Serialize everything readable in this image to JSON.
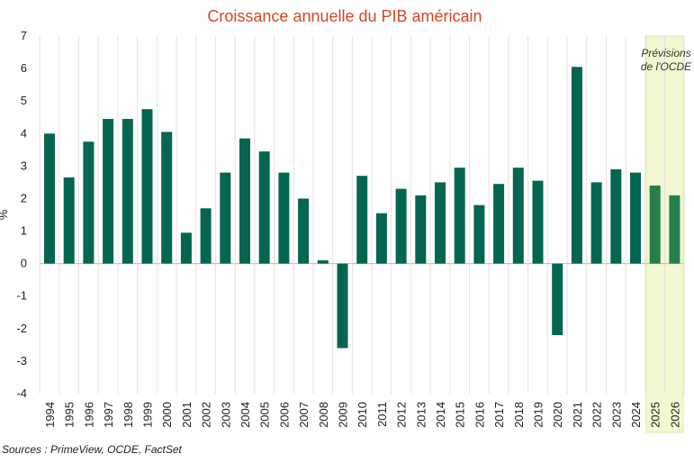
{
  "chart_data": {
    "type": "bar",
    "title": "Croissance annuelle du PIB américain",
    "ylabel": "%",
    "xlabel": "",
    "ylim": [
      -4,
      7
    ],
    "yticks": [
      -4,
      -3,
      -2,
      -1,
      0,
      1,
      2,
      3,
      4,
      5,
      6,
      7
    ],
    "grid": "vertical",
    "categories": [
      "1994",
      "1995",
      "1996",
      "1997",
      "1998",
      "1999",
      "2000",
      "2001",
      "2002",
      "2003",
      "2004",
      "2005",
      "2006",
      "2007",
      "2008",
      "2009",
      "2010",
      "2011",
      "2012",
      "2013",
      "2014",
      "2015",
      "2016",
      "2017",
      "2018",
      "2019",
      "2020",
      "2021",
      "2022",
      "2023",
      "2024",
      "2025",
      "2026"
    ],
    "values": [
      4.0,
      2.65,
      3.75,
      4.45,
      4.45,
      4.75,
      4.05,
      0.95,
      1.7,
      2.8,
      3.85,
      3.45,
      2.8,
      2.0,
      0.1,
      -2.6,
      2.7,
      1.55,
      2.3,
      2.1,
      2.5,
      2.95,
      1.8,
      2.45,
      2.95,
      2.55,
      -2.2,
      6.05,
      2.5,
      2.9,
      2.8,
      2.4,
      2.1
    ],
    "forecast_categories": [
      "2025",
      "2026"
    ],
    "annotation": [
      "Prévisions",
      "de l'OCDE"
    ],
    "source": "Sources : PrimeView, OCDE, FactSet",
    "colors": {
      "bar": "#046650",
      "forecast_bar": "#257f4d",
      "forecast_band": "#f2f8d1",
      "forecast_border": "#dfeaa6",
      "title": "#d2491e"
    }
  }
}
